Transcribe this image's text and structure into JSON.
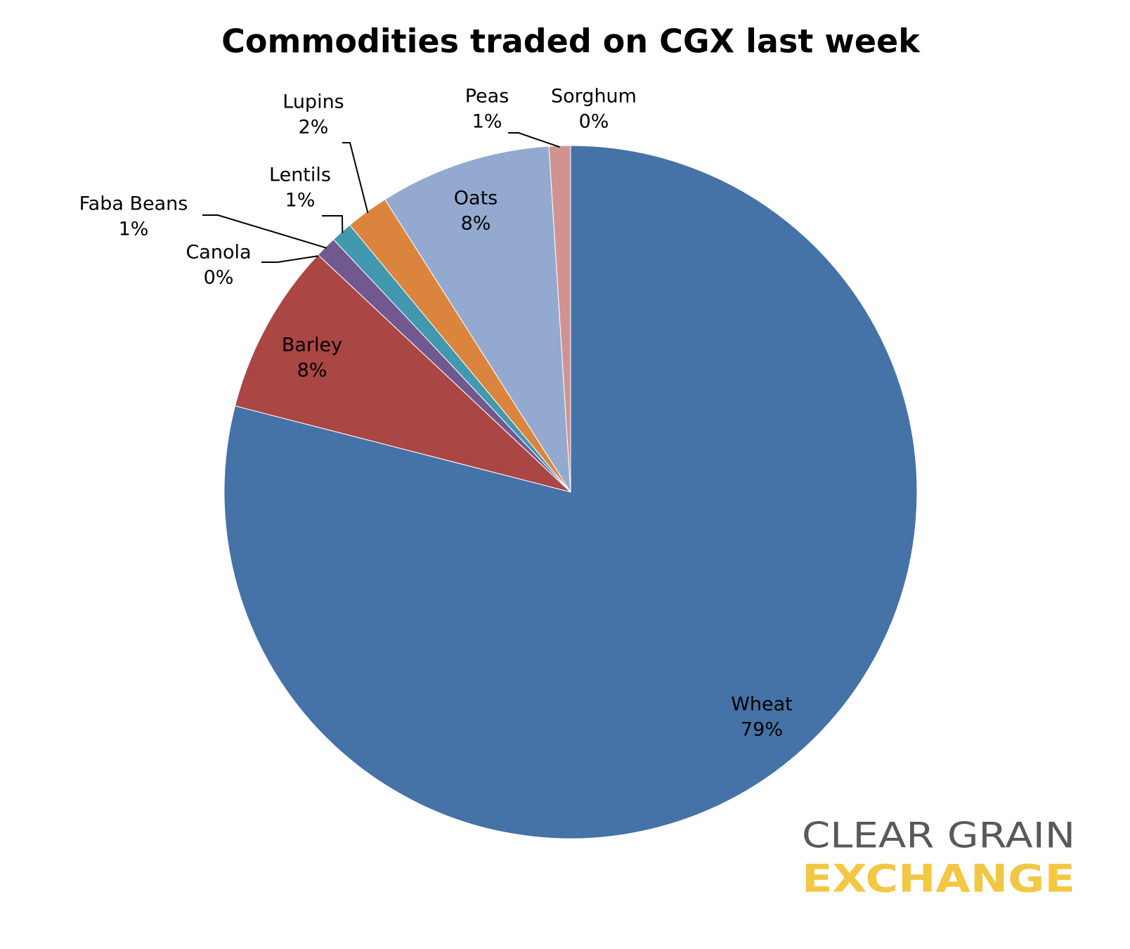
{
  "chart_data": {
    "type": "pie",
    "title": "Commodities traded on CGX last week",
    "categories": [
      "Wheat",
      "Barley",
      "Canola",
      "Faba Beans",
      "Lentils",
      "Lupins",
      "Oats",
      "Peas",
      "Sorghum"
    ],
    "values": [
      79,
      8,
      0,
      1,
      1,
      2,
      8,
      1,
      0
    ],
    "value_labels": [
      "79%",
      "8%",
      "0%",
      "1%",
      "1%",
      "2%",
      "8%",
      "1%",
      "0%"
    ],
    "colors": [
      "#4572a7",
      "#aa4643",
      "#89a54e",
      "#71588f",
      "#4198af",
      "#db843d",
      "#93a9cf",
      "#d19392",
      "#b9cd96"
    ]
  },
  "logo": {
    "line1": "CLEAR GRAIN",
    "line2": "EXCHANGE"
  }
}
